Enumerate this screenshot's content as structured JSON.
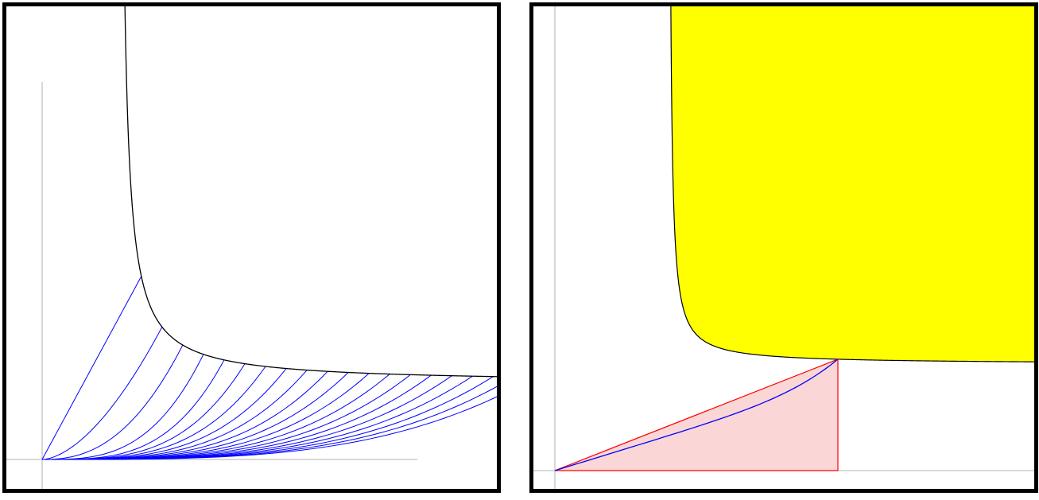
{
  "colors": {
    "background": "#ffffff",
    "frame": "#000000",
    "axis": "#b0b0b0",
    "hyperbola": "#000000",
    "hyperbolic_rays": "#0000ff",
    "secant_triangle": "#ff0000",
    "triangle_fill": "#fbd6d6",
    "region_fill": "#ffff00"
  },
  "chart_data": [
    {
      "type": "diagram",
      "description_panel": "left",
      "title": "",
      "xlabel": "",
      "ylabel": "",
      "curve": "hyperbola",
      "ray_parameters": [
        0.0,
        0.35,
        0.7,
        1.05,
        1.4,
        1.75,
        2.1,
        2.45,
        2.8,
        3.15,
        3.5,
        3.85,
        4.2,
        4.55,
        4.9,
        5.25,
        5.6,
        5.95,
        6.3,
        6.65
      ]
    },
    {
      "type": "diagram",
      "description_panel": "right",
      "title": "",
      "xlabel": "",
      "ylabel": "",
      "curve": "hyperbola",
      "shaded_region": "above hyperbola",
      "secant_triangle": true
    }
  ]
}
